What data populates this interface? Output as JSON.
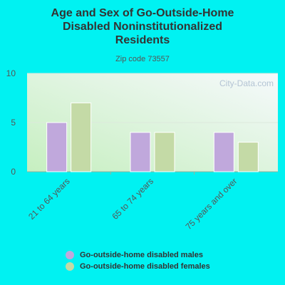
{
  "title_lines": [
    "Age and Sex of Go-Outside-Home",
    "Disabled Noninstitutionalized",
    "Residents"
  ],
  "subtitle": "Zip code 73557",
  "watermark": "City-Data.com",
  "colors": {
    "males": "#c0a8dc",
    "females": "#c4daa6"
  },
  "chart_data": {
    "type": "bar",
    "title": "Age and Sex of Go-Outside-Home Disabled Noninstitutionalized Residents",
    "subtitle": "Zip code 73557",
    "categories": [
      "21 to 64 years",
      "65 to 74 years",
      "75 years and over"
    ],
    "series": [
      {
        "name": "Go-outside-home disabled males",
        "values": [
          5,
          4,
          4
        ]
      },
      {
        "name": "Go-outside-home disabled females",
        "values": [
          7,
          4,
          3
        ]
      }
    ],
    "ylim": [
      0,
      10
    ],
    "yticks": [
      0,
      5,
      10
    ],
    "xlabel": "",
    "ylabel": "",
    "grid": true,
    "legend": "bottom"
  }
}
